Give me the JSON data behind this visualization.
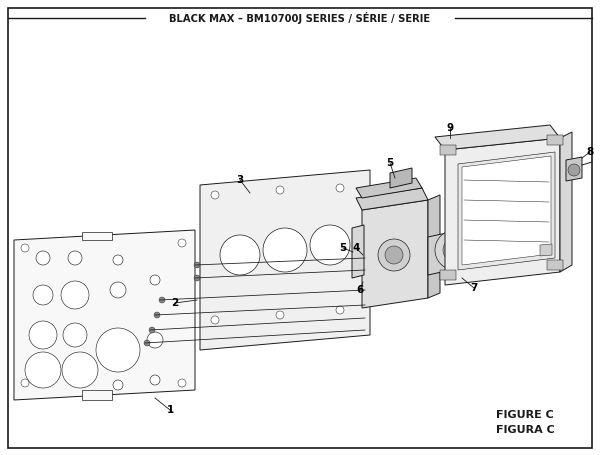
{
  "title": "BLACK MAX – BM10700J SERIES / SÉRIE / SERIE",
  "figure_label": "FIGURE C",
  "figura_label": "FIGURA C",
  "bg_color": "#ffffff",
  "lc": "#1a1a1a",
  "lw": 0.7,
  "figsize": [
    6.0,
    4.55
  ],
  "dpi": 100
}
